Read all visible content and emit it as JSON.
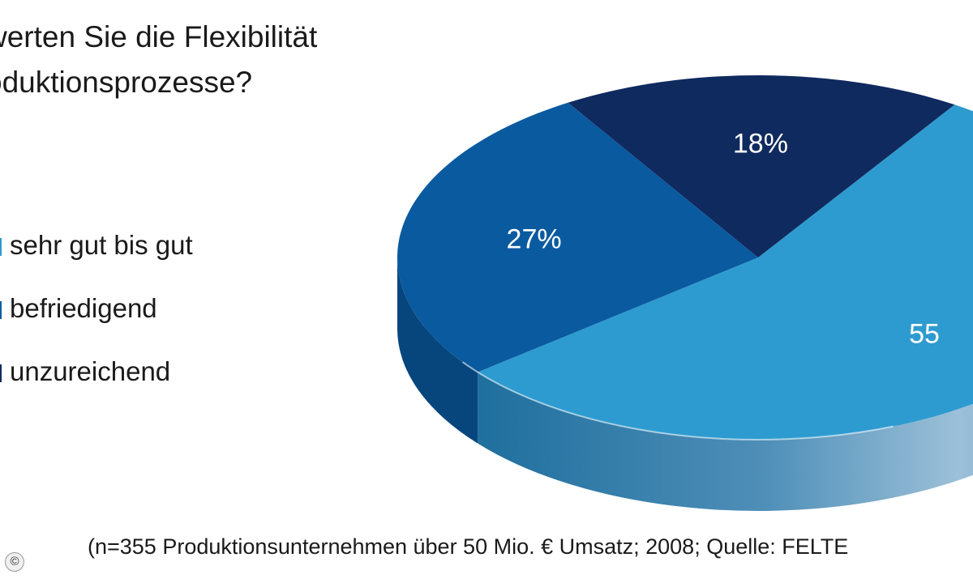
{
  "chart_data": {
    "type": "pie",
    "title_lines": [
      "werten Sie die Flexibilität",
      "oduktionsprozesse?"
    ],
    "slices": [
      {
        "label": "sehr gut bis gut",
        "value": 55,
        "value_label": "55",
        "color": "#2e9bd0",
        "side": "#4a8fb8"
      },
      {
        "label": "befriedigend",
        "value": 27,
        "value_label": "27%",
        "color": "#0a5aa0",
        "side": "#07467d"
      },
      {
        "label": "unzureichend",
        "value": 18,
        "value_label": "18%",
        "color": "#0f2a5e",
        "side": "#0a1d42"
      }
    ],
    "legend_position": "left"
  },
  "source": "(n=355 Produktionsunternehmen über 50 Mio. € Umsatz; 2008; Quelle: FELTE",
  "copyright_mark": "©"
}
